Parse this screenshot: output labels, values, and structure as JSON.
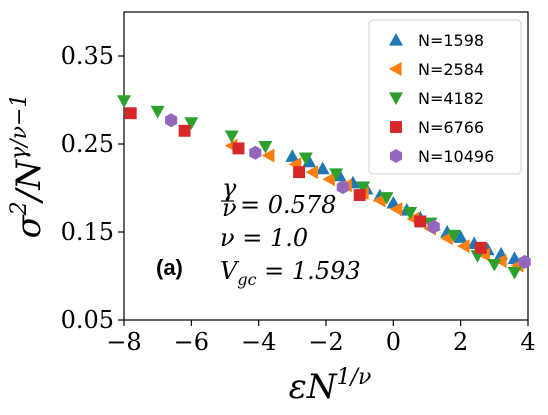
{
  "chart_data": {
    "type": "scatter",
    "xlabel": "εN^{1/ν}",
    "ylabel": "σ²/N^{γ/ν−1}",
    "xlim": [
      -8,
      4
    ],
    "ylim": [
      0.05,
      0.4
    ],
    "xticks": [
      -8,
      -6,
      -4,
      -2,
      0,
      2,
      4
    ],
    "yticks": [
      0.05,
      0.15,
      0.25,
      0.35
    ],
    "xtick_labels": [
      "−8",
      "−6",
      "−4",
      "−2",
      "0",
      "2",
      "4"
    ],
    "ytick_labels": [
      "0.05",
      "0.15",
      "0.25",
      "0.35"
    ],
    "grid": false,
    "legend": "top-right",
    "panel_label": "(a)",
    "annotations": [
      "γ/ν = 0.578",
      "ν = 1.0",
      "V_gc = 1.593"
    ],
    "series": [
      {
        "name": "N=1598",
        "marker": "triangle-up",
        "color": "#1f77b4",
        "x": [
          -3.0,
          -2.5,
          -2.1,
          -1.6,
          -1.2,
          -0.8,
          -0.4,
          0.0,
          0.4,
          0.8,
          1.2,
          1.6,
          2.0,
          2.4,
          2.8,
          3.2,
          3.6
        ],
        "y": [
          0.236,
          0.23,
          0.222,
          0.214,
          0.206,
          0.199,
          0.191,
          0.183,
          0.175,
          0.166,
          0.158,
          0.15,
          0.144,
          0.137,
          0.13,
          0.125,
          0.12
        ]
      },
      {
        "name": "N=2584",
        "marker": "triangle-left",
        "color": "#ff7f0e",
        "x": [
          -4.8,
          -3.7,
          -2.9,
          -2.4,
          -1.9,
          -1.4,
          -0.9,
          -0.4,
          0.1,
          0.6,
          1.1,
          1.6,
          2.1,
          2.7,
          3.2,
          3.7
        ],
        "y": [
          0.248,
          0.237,
          0.227,
          0.218,
          0.21,
          0.203,
          0.194,
          0.186,
          0.176,
          0.165,
          0.154,
          0.143,
          0.134,
          0.124,
          0.117,
          0.112
        ]
      },
      {
        "name": "N=4182",
        "marker": "triangle-down",
        "color": "#2ca02c",
        "x": [
          -8.0,
          -7.0,
          -6.0,
          -4.8,
          -3.8,
          -2.6,
          -1.7,
          -0.9,
          -0.2,
          0.5,
          1.1,
          1.8,
          2.5,
          3.0,
          3.6
        ],
        "y": [
          0.299,
          0.287,
          0.274,
          0.259,
          0.247,
          0.234,
          0.216,
          0.201,
          0.189,
          0.172,
          0.16,
          0.146,
          0.123,
          0.113,
          0.104
        ]
      },
      {
        "name": "N=6766",
        "marker": "square",
        "color": "#d62728",
        "x": [
          -7.8,
          -6.2,
          -4.6,
          -2.8,
          -1.0,
          0.8,
          2.6
        ],
        "y": [
          0.285,
          0.265,
          0.245,
          0.218,
          0.192,
          0.162,
          0.132
        ]
      },
      {
        "name": "N=10496",
        "marker": "hexagon",
        "color": "#9467bd",
        "x": [
          -6.6,
          -4.1,
          -1.5,
          1.2,
          3.9
        ],
        "y": [
          0.277,
          0.24,
          0.201,
          0.156,
          0.116
        ]
      }
    ]
  }
}
